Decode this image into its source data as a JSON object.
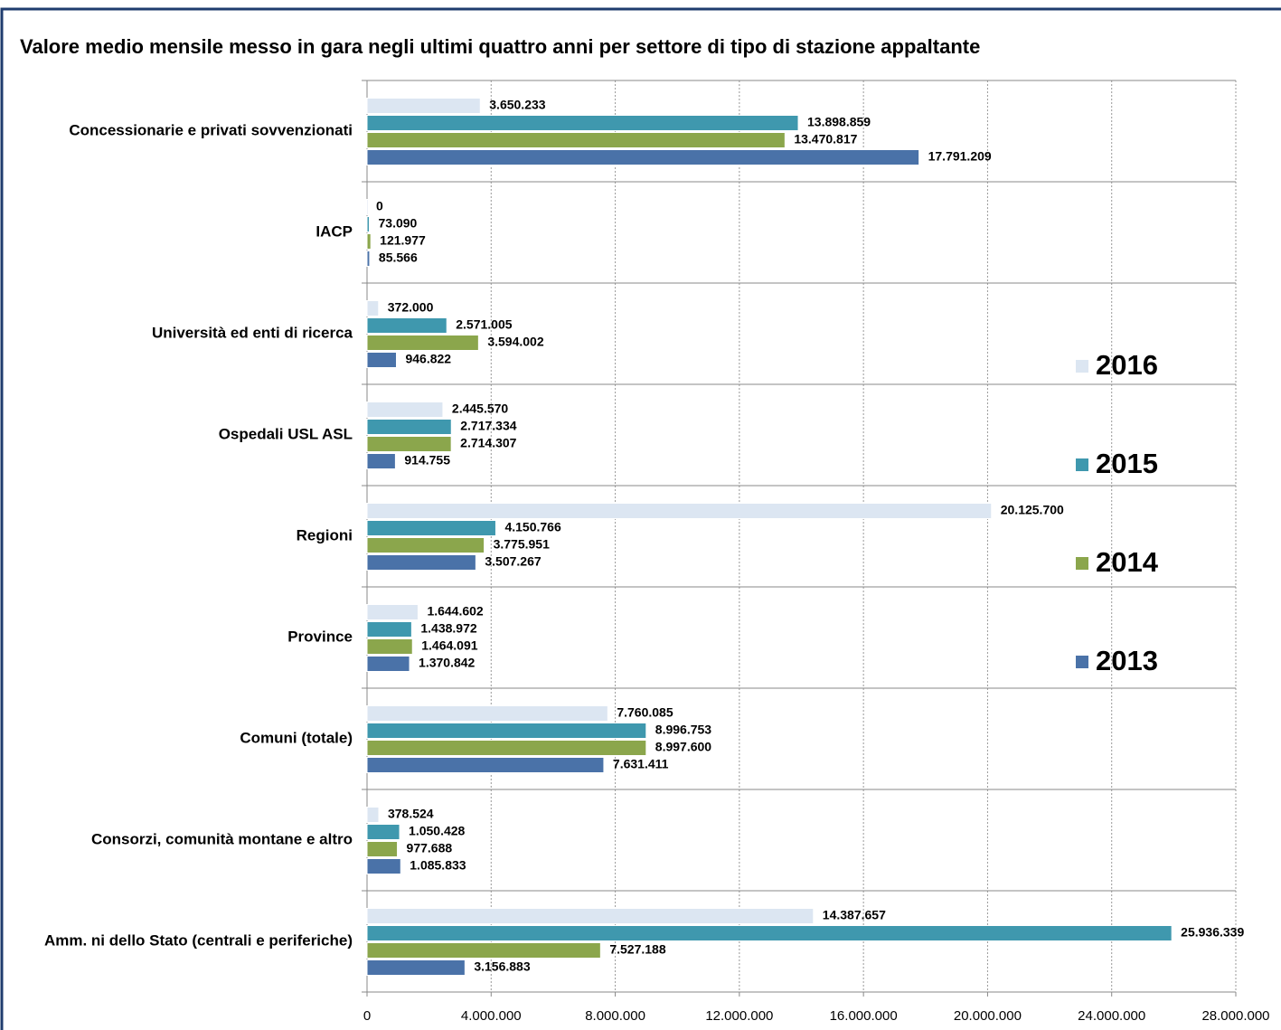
{
  "chart_data": {
    "type": "hbar",
    "title": "Valore medio mensile messo in gara negli ultimi quattro anni per settore di tipo di stazione appaltante",
    "categories": [
      "Concessionarie e privati sovvenzionati",
      "IACP",
      "Università ed enti di ricerca",
      "Ospedali USL ASL",
      "Regioni",
      "Province",
      "Comuni (totale)",
      "Consorzi, comunità montane e altro",
      "Amm. ni dello Stato (centrali e periferiche)"
    ],
    "series": [
      {
        "name": "2016",
        "color": "#dce6f2",
        "values": [
          3650233,
          0,
          372000,
          2445570,
          20125700,
          1644602,
          7760085,
          378524,
          14387657
        ],
        "value_labels": [
          "3.650.233",
          "0",
          "372.000",
          "2.445.570",
          "20.125.700",
          "1.644.602",
          "7.760.085",
          "378.524",
          "14.387.657"
        ]
      },
      {
        "name": "2015",
        "color": "#3f98ae",
        "values": [
          13898859,
          73090,
          2571005,
          2717334,
          4150766,
          1438972,
          8996753,
          1050428,
          25936339
        ],
        "value_labels": [
          "13.898.859",
          "73.090",
          "2.571.005",
          "2.717.334",
          "4.150.766",
          "1.438.972",
          "8.996.753",
          "1.050.428",
          "25.936.339"
        ]
      },
      {
        "name": "2014",
        "color": "#8ba64c",
        "values": [
          13470817,
          121977,
          3594002,
          2714307,
          3775951,
          1464091,
          8997600,
          977688,
          7527188
        ],
        "value_labels": [
          "13.470.817",
          "121.977",
          "3.594.002",
          "2.714.307",
          "3.775.951",
          "1.464.091",
          "8.997.600",
          "977.688",
          "7.527.188"
        ]
      },
      {
        "name": "2013",
        "color": "#4a72a8",
        "values": [
          17791209,
          85566,
          946822,
          914755,
          3507267,
          1370842,
          7631411,
          1085833,
          3156883
        ],
        "value_labels": [
          "17.791.209",
          "85.566",
          "946.822",
          "914.755",
          "3.507.267",
          "1.370.842",
          "7.631.411",
          "1.085.833",
          "3.156.883"
        ]
      }
    ],
    "xlim": [
      0,
      28000000
    ],
    "xticks": [
      0,
      {
        "value": 4000000,
        "label": "4.000.000"
      },
      {
        "value": 8000000,
        "label": "8.000.000"
      },
      {
        "value": 12000000,
        "label": "12.000.000"
      },
      {
        "value": 16000000,
        "label": "16.000.000"
      },
      {
        "value": 20000000,
        "label": "20.000.000"
      },
      {
        "value": 24000000,
        "label": "24.000.000"
      },
      {
        "value": 28000000,
        "label": "28.000.000"
      }
    ],
    "grid": true,
    "legend": "right"
  }
}
